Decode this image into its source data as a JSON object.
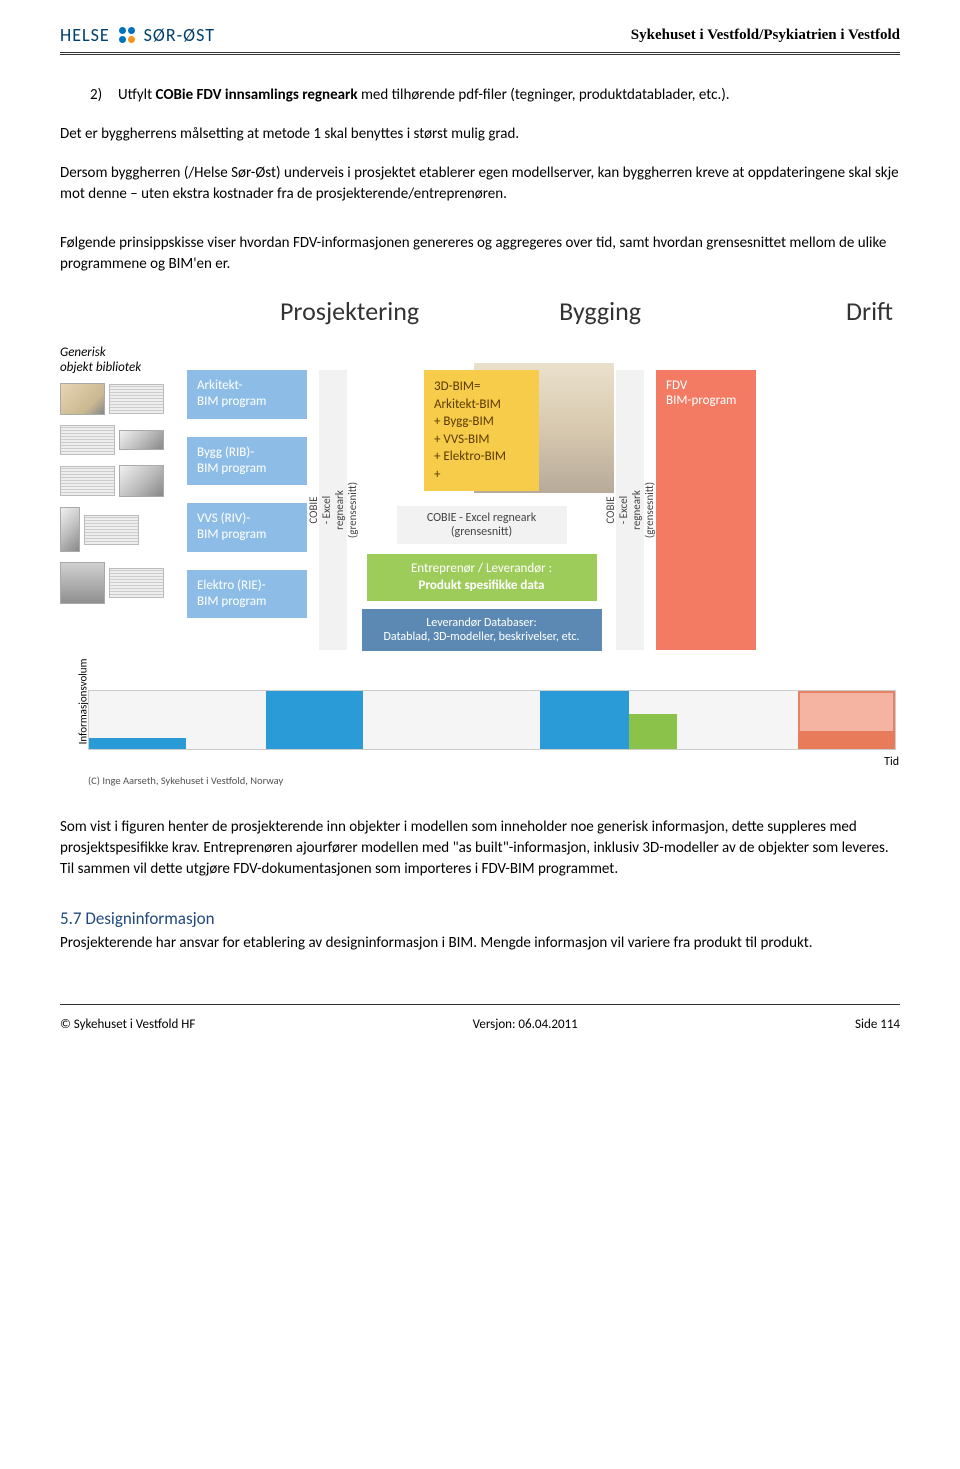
{
  "header": {
    "logo_left": "HELSE",
    "logo_right": "SØR-ØST",
    "title": "Sykehuset i Vestfold/Psykiatrien i Vestfold"
  },
  "body": {
    "list_num": "2)",
    "list_text_prefix": "Utfylt ",
    "list_text_bold": "COBie FDV innsamlings regneark",
    "list_text_suffix": " med tilhørende pdf-filer (tegninger, produktdatablader, etc.).",
    "para1": "Det er byggherrens målsetting at metode 1 skal benyttes i størst mulig grad.",
    "para2": "Dersom byggherren (/Helse Sør-Øst) underveis i prosjektet etablerer egen modellserver, kan byggherren kreve at oppdateringene skal skje mot denne – uten ekstra kostnader fra de prosjekterende/entreprenøren.",
    "para3": "Følgende prinsippskisse viser hvordan FDV-informasjonen genereres og aggregeres over tid, samt hvordan grensesnittet mellom de ulike programmene og BIM'en er.",
    "para4": "Som vist i figuren henter de prosjekterende inn objekter i modellen som inneholder noe generisk informasjon, dette suppleres med prosjektspesifikke krav. Entreprenøren ajourfører modellen med \"as built\"-informasjon, inklusiv 3D-modeller av de objekter som leveres. Til sammen vil dette utgjøre FDV-dokumentasjonen som importeres i FDV-BIM programmet.",
    "section_heading": "5.7 Designinformasjon",
    "para5": "Prosjekterende har ansvar for etablering av designinformasjon i BIM. Mengde informasjon vil variere fra produkt til produkt."
  },
  "diagram": {
    "phases": {
      "p1": "Prosjektering",
      "p2": "Bygging",
      "p3": "Drift"
    },
    "library_label": "Generisk\nobjekt bibliotek",
    "programs": [
      "Arkitekt-\nBIM program",
      "Bygg (RIB)-\nBIM program",
      "VVS (RIV)-\nBIM program",
      "Elektro (RIE)-\nBIM program"
    ],
    "cobie_vert": "COBIE\n- Excel regneark\n(grensesnitt)",
    "bim3d": "3D-BIM=\nArkitekt-BIM\n+ Bygg-BIM\n+ VVS-BIM\n+ Elektro-BIM\n+",
    "cobie_horiz": "COBIE - Excel regneark\n(grensesnitt)",
    "entrep_label": "Entreprenør / Leverandør :",
    "entrep_bold": "Produkt spesifikke data",
    "lever": "Leverandør Databaser:\nDatablad, 3D-modeller, beskrivelser, etc.",
    "fdv": "FDV\nBIM-program",
    "ylabel": "Informasjonsvolum",
    "xlabel": "Tid",
    "copyright": "(C) Inge Aarseth, Sykehuset i Vestfold, Norway",
    "colors": {
      "program_blue": "#8dbde6",
      "cobie_gray": "#f2f2f2",
      "bim_yellow": "#f7cc4a",
      "entrep_green": "#9dcc5a",
      "lever_blue": "#5b89b4",
      "fdv_orange": "#f37a63",
      "vol_blue": "#2b9bd8",
      "vol_green": "#8bc34a",
      "vol_orange_fill": "#f6a48e",
      "vol_orange_border": "#e2663f"
    },
    "volume_blocks": [
      {
        "left_pct": 0,
        "width_pct": 12,
        "height_pct": 18,
        "color": "#2b9bd8"
      },
      {
        "left_pct": 22,
        "width_pct": 12,
        "height_pct": 100,
        "color": "#2b9bd8"
      },
      {
        "left_pct": 56,
        "width_pct": 11,
        "height_pct": 100,
        "color": "#2b9bd8"
      },
      {
        "left_pct": 67,
        "width_pct": 6,
        "height_pct": 60,
        "color": "#8bc34a"
      },
      {
        "left_pct": 88,
        "width_pct": 12,
        "height_pct": 100,
        "color": "#f6a48e",
        "border": "#e2663f",
        "border_w": 2,
        "opacity": 0.8
      },
      {
        "left_pct": 88,
        "width_pct": 12,
        "height_pct": 30,
        "color": "#e87b5a"
      }
    ]
  },
  "footer": {
    "left": "© Sykehuset i Vestfold HF",
    "center": "Versjon: 06.04.2011",
    "right": "Side 114"
  }
}
